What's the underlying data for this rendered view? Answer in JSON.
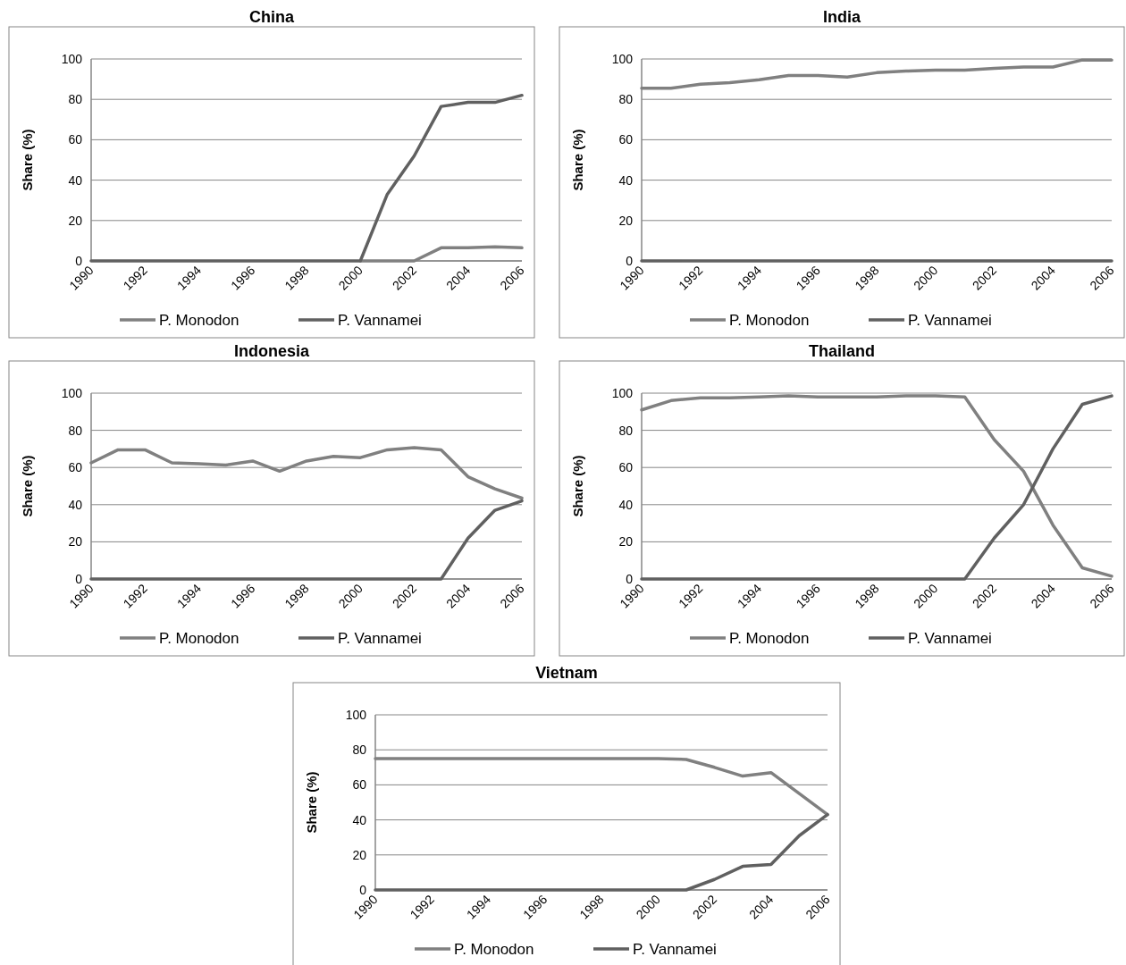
{
  "chart_data": [
    {
      "type": "line",
      "title": "China",
      "ylabel": "Share (%)",
      "x": [
        1990,
        1991,
        1992,
        1993,
        1994,
        1995,
        1996,
        1997,
        1998,
        1999,
        2000,
        2001,
        2002,
        2003,
        2004,
        2005,
        2006
      ],
      "xlim": [
        1990,
        2006
      ],
      "xticks": [
        1990,
        1992,
        1994,
        1996,
        1998,
        2000,
        2002,
        2004,
        2006
      ],
      "ylim": [
        0,
        100
      ],
      "yticks": [
        0,
        20,
        40,
        60,
        80,
        100
      ],
      "grid": "y",
      "legend": "bottom",
      "series": [
        {
          "name": "P. Monodon",
          "color": "#808080",
          "values": [
            null,
            null,
            null,
            null,
            null,
            null,
            null,
            null,
            null,
            null,
            0,
            0,
            0,
            6.5,
            6.5,
            7,
            6.5
          ]
        },
        {
          "name": "P. Vannamei",
          "color": "#606060",
          "values": [
            0,
            0,
            0,
            0,
            0,
            0,
            0,
            0,
            0,
            0,
            0,
            33,
            52,
            76.5,
            78.5,
            78.5,
            82
          ]
        }
      ]
    },
    {
      "type": "line",
      "title": "India",
      "ylabel": "Share (%)",
      "x": [
        1990,
        1991,
        1992,
        1993,
        1994,
        1995,
        1996,
        1997,
        1998,
        1999,
        2000,
        2001,
        2002,
        2003,
        2004,
        2005,
        2006
      ],
      "xlim": [
        1990,
        2006
      ],
      "xticks": [
        1990,
        1992,
        1994,
        1996,
        1998,
        2000,
        2002,
        2004,
        2006
      ],
      "ylim": [
        0,
        100
      ],
      "yticks": [
        0,
        20,
        40,
        60,
        80,
        100
      ],
      "grid": "y",
      "legend": "bottom",
      "series": [
        {
          "name": "P. Monodon",
          "color": "#808080",
          "values": [
            85.5,
            85.5,
            87.5,
            88.3,
            89.7,
            91.8,
            91.8,
            91,
            93.2,
            94,
            94.5,
            94.5,
            95.3,
            96,
            96,
            99.5,
            99.5
          ]
        },
        {
          "name": "P. Vannamei",
          "color": "#606060",
          "values": [
            0,
            0,
            0,
            0,
            0,
            0,
            0,
            0,
            0,
            0,
            0,
            0,
            0,
            0,
            0,
            0,
            0
          ]
        }
      ]
    },
    {
      "type": "line",
      "title": "Indonesia",
      "ylabel": "Share (%)",
      "x": [
        1990,
        1991,
        1992,
        1993,
        1994,
        1995,
        1996,
        1997,
        1998,
        1999,
        2000,
        2001,
        2002,
        2003,
        2004,
        2005,
        2006
      ],
      "xlim": [
        1990,
        2006
      ],
      "xticks": [
        1990,
        1992,
        1994,
        1996,
        1998,
        2000,
        2002,
        2004,
        2006
      ],
      "ylim": [
        0,
        100
      ],
      "yticks": [
        0,
        20,
        40,
        60,
        80,
        100
      ],
      "grid": "y",
      "legend": "bottom",
      "series": [
        {
          "name": "P. Monodon",
          "color": "#808080",
          "values": [
            62.5,
            69.5,
            69.5,
            62.5,
            62,
            61.3,
            63.5,
            58,
            63.5,
            66,
            65.3,
            69.5,
            70.7,
            69.5,
            55,
            48.5,
            43.5
          ]
        },
        {
          "name": "P. Vannamei",
          "color": "#606060",
          "values": [
            0,
            0,
            0,
            0,
            0,
            0,
            0,
            0,
            0,
            0,
            0,
            0,
            0,
            0,
            22,
            37,
            42
          ]
        }
      ]
    },
    {
      "type": "line",
      "title": "Thailand",
      "ylabel": "Share (%)",
      "x": [
        1990,
        1991,
        1992,
        1993,
        1994,
        1995,
        1996,
        1997,
        1998,
        1999,
        2000,
        2001,
        2002,
        2003,
        2004,
        2005,
        2006
      ],
      "xlim": [
        1990,
        2006
      ],
      "xticks": [
        1990,
        1992,
        1994,
        1996,
        1998,
        2000,
        2002,
        2004,
        2006
      ],
      "ylim": [
        0,
        100
      ],
      "yticks": [
        0,
        20,
        40,
        60,
        80,
        100
      ],
      "grid": "y",
      "legend": "bottom",
      "series": [
        {
          "name": "P. Monodon",
          "color": "#808080",
          "values": [
            91,
            96,
            97.5,
            97.5,
            98,
            98.5,
            98,
            98,
            98,
            98.5,
            98.5,
            98,
            75,
            58,
            29,
            6,
            1.5
          ]
        },
        {
          "name": "P. Vannamei",
          "color": "#606060",
          "values": [
            0,
            0,
            0,
            0,
            0,
            0,
            0,
            0,
            0,
            0,
            0,
            0,
            22,
            40,
            70,
            94,
            98.5
          ]
        }
      ]
    },
    {
      "type": "line",
      "title": "Vietnam",
      "ylabel": "Share (%)",
      "x": [
        1990,
        1991,
        1992,
        1993,
        1994,
        1995,
        1996,
        1997,
        1998,
        1999,
        2000,
        2001,
        2002,
        2003,
        2004,
        2005,
        2006
      ],
      "xlim": [
        1990,
        2006
      ],
      "xticks": [
        1990,
        1992,
        1994,
        1996,
        1998,
        2000,
        2002,
        2004,
        2006
      ],
      "ylim": [
        0,
        100
      ],
      "yticks": [
        0,
        20,
        40,
        60,
        80,
        100
      ],
      "grid": "y",
      "legend": "bottom",
      "series": [
        {
          "name": "P. Monodon",
          "color": "#808080",
          "values": [
            75,
            75,
            75,
            75,
            75,
            75,
            75,
            75,
            75,
            75,
            75,
            74.5,
            70,
            65,
            67,
            55,
            43
          ]
        },
        {
          "name": "P. Vannamei",
          "color": "#606060",
          "values": [
            0,
            0,
            0,
            0,
            0,
            0,
            0,
            0,
            0,
            0,
            0,
            0,
            6,
            13.5,
            14.5,
            31,
            43
          ]
        }
      ]
    }
  ]
}
